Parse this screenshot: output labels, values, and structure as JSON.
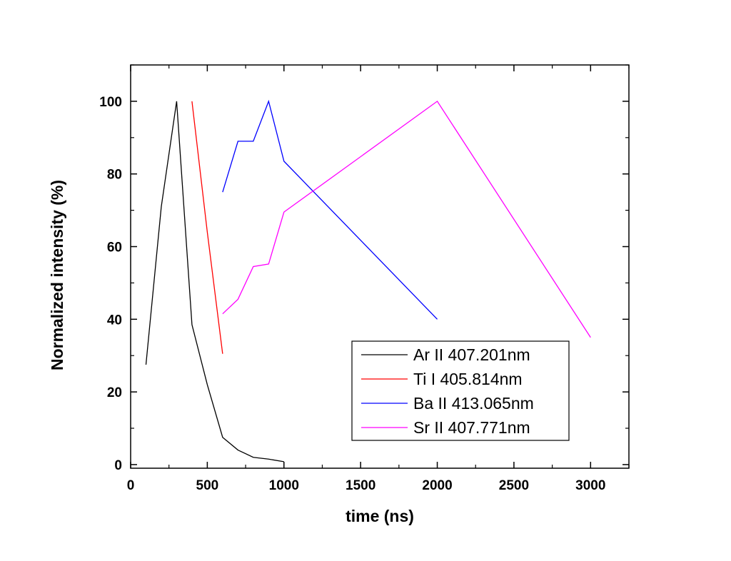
{
  "chart_data": {
    "type": "line",
    "title": "",
    "xlabel": "time (ns)",
    "ylabel": "Normalized intensity (%)",
    "xlim": [
      0,
      3250
    ],
    "ylim": [
      -1,
      110
    ],
    "x_ticks": [
      0,
      500,
      1000,
      1500,
      2000,
      2500,
      3000
    ],
    "y_ticks": [
      0,
      20,
      40,
      60,
      80,
      100
    ],
    "grid": false,
    "legend_position": "bottom-right",
    "series": [
      {
        "name": "Ar II 407.201nm",
        "color": "#000000",
        "x": [
          100,
          200,
          300,
          400,
          500,
          600,
          700,
          800,
          900,
          1000
        ],
        "y": [
          27.5,
          71,
          100,
          38.5,
          22,
          7.5,
          4,
          2,
          1.5,
          0.8
        ]
      },
      {
        "name": "Ti I 405.814nm",
        "color": "#ff0000",
        "x": [
          400,
          500,
          600
        ],
        "y": [
          100,
          64,
          30.5
        ]
      },
      {
        "name": "Ba II 413.065nm",
        "color": "#0000ff",
        "x": [
          600,
          700,
          800,
          900,
          1000,
          2000
        ],
        "y": [
          75,
          89,
          89,
          100,
          83.5,
          40
        ]
      },
      {
        "name": "Sr II 407.771nm",
        "color": "#ff00ff",
        "x": [
          600,
          700,
          800,
          900,
          1000,
          2000,
          3000
        ],
        "y": [
          41.5,
          45.5,
          54.5,
          55.2,
          69.5,
          100,
          35
        ]
      }
    ]
  }
}
